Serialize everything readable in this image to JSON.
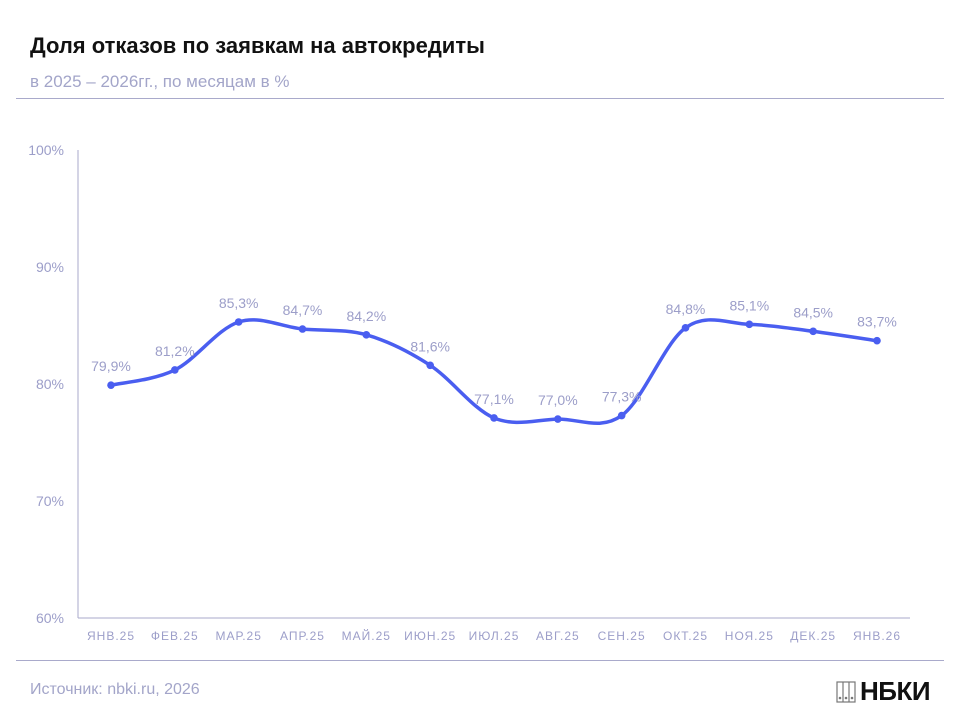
{
  "header": {
    "title": "Доля отказов по заявкам на автокредиты",
    "subtitle": "в 2025 – 2026гг., по месяцам в %"
  },
  "footer": {
    "source": "Источник: nbki.ru, 2026",
    "logo_text": "НБКИ"
  },
  "colors": {
    "line": "#4a5ef0",
    "labels": "#9c9ec9",
    "axis": "#a9aacb",
    "title": "#111111"
  },
  "chart_data": {
    "type": "line",
    "categories": [
      "ЯНВ.25",
      "ФЕВ.25",
      "МАР.25",
      "АПР.25",
      "МАЙ.25",
      "ИЮН.25",
      "ИЮЛ.25",
      "АВГ.25",
      "СЕН.25",
      "ОКТ.25",
      "НОЯ.25",
      "ДЕК.25",
      "ЯНВ.26"
    ],
    "values": [
      79.9,
      81.2,
      85.3,
      84.7,
      84.2,
      81.6,
      77.1,
      77.0,
      77.3,
      84.8,
      85.1,
      84.5,
      83.7
    ],
    "data_labels": [
      "79,9%",
      "81,2%",
      "85,3%",
      "84,7%",
      "84,2%",
      "81,6%",
      "77,1%",
      "77,0%",
      "77,3%",
      "84,8%",
      "85,1%",
      "84,5%",
      "83,7%"
    ],
    "ylim": [
      60,
      100
    ],
    "yticks": [
      60,
      70,
      80,
      90,
      100
    ],
    "ytick_labels": [
      "60%",
      "70%",
      "80%",
      "90%",
      "100%"
    ],
    "grid": false,
    "smooth": true
  }
}
